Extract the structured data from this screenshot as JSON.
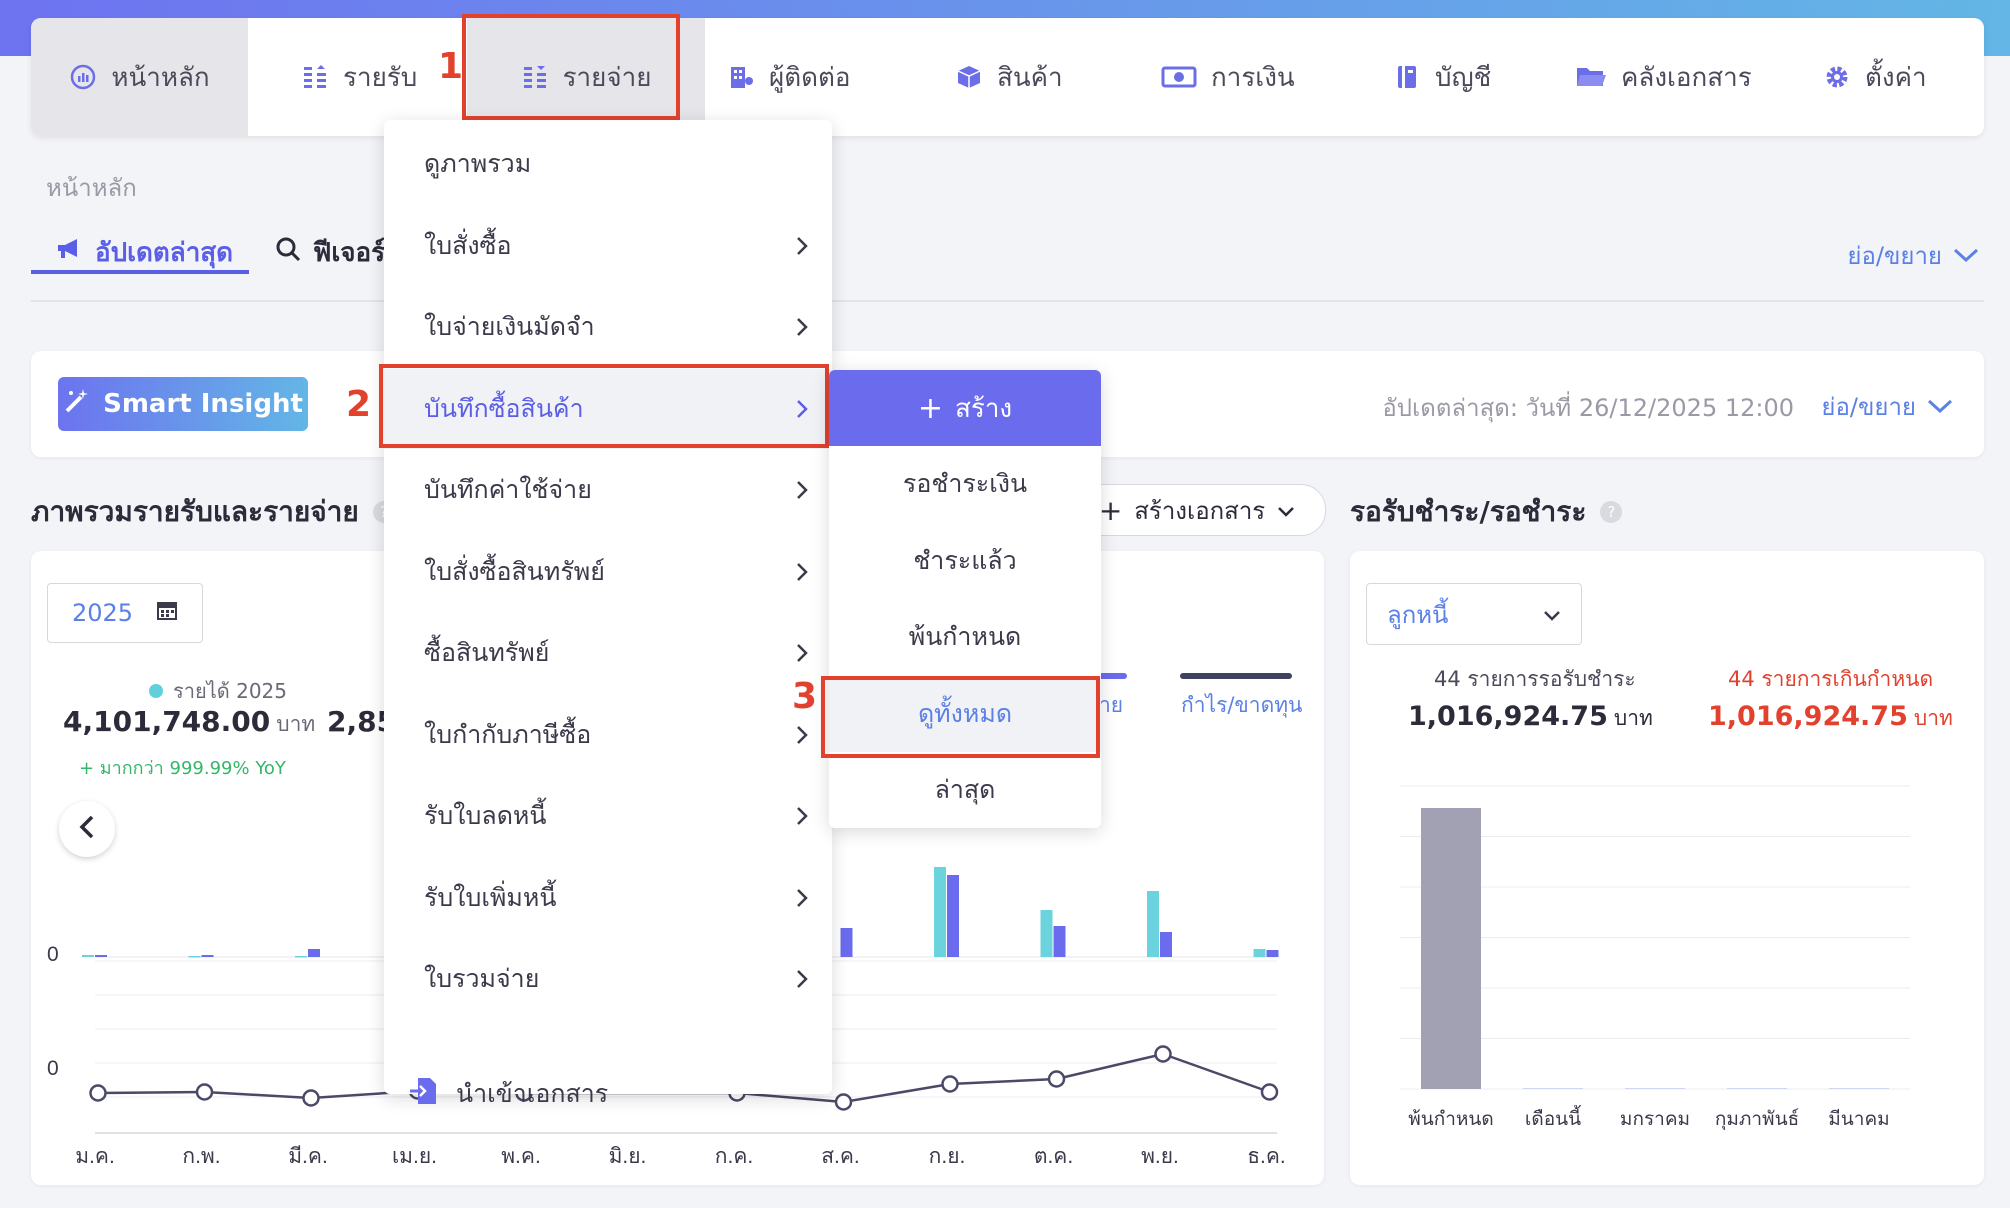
{
  "nav": {
    "items": [
      {
        "label": "หน้าหลัก",
        "icon": "dashboard-icon"
      },
      {
        "label": "รายรับ",
        "icon": "coins-icon"
      },
      {
        "label": "รายจ่าย",
        "icon": "coins-icon"
      },
      {
        "label": "ผู้ติดต่อ",
        "icon": "building-icon"
      },
      {
        "label": "สินค้า",
        "icon": "box-icon"
      },
      {
        "label": "การเงิน",
        "icon": "money-icon"
      },
      {
        "label": "บัญชี",
        "icon": "ledger-icon"
      },
      {
        "label": "คลังเอกสาร",
        "icon": "folder-icon"
      },
      {
        "label": "ตั้งค่า",
        "icon": "gear-icon"
      }
    ]
  },
  "steps": [
    "1",
    "2",
    "3"
  ],
  "breadcrumb": "หน้าหลัก",
  "tabs": {
    "latest": "อัปเดตล่าสุด",
    "features": "ฟีเจอร์ใ"
  },
  "collapse_label": "ย่อ/ขยาย",
  "insight": {
    "button": "Smart Insight",
    "updated": "อัปเดตล่าสุด: วันที่ 26/12/2025 12:00",
    "collapse": "ย่อ/ขยาย"
  },
  "overview": {
    "title": "ภาพรวมรายรับและรายจ่าย",
    "create_doc": "สร้างเอกสาร",
    "year": "2025",
    "income_legend": "รายได้ 2025",
    "income_value": "4,101,748.00",
    "currency": "บาท",
    "second_value": "2,85",
    "yoy": "+ มากกว่า 999.99% YoY",
    "legend_expense_partial": "่าย",
    "legend_profit": "กำไร/ขาดทุน",
    "zero1": "0",
    "zero2": "0"
  },
  "chart_data": {
    "type": "bar",
    "categories": [
      "ม.ค.",
      "ก.พ.",
      "มี.ค.",
      "เม.ย.",
      "พ.ค.",
      "มิ.ย.",
      "ก.ค.",
      "ส.ค.",
      "ก.ย.",
      "ต.ค.",
      "พ.ย.",
      "ธ.ค."
    ],
    "series": [
      {
        "name": "รายได้ 2025",
        "values": [
          2,
          1,
          1,
          null,
          null,
          null,
          null,
          null,
          90,
          47,
          66,
          8
        ]
      },
      {
        "name": "",
        "values": [
          2,
          2,
          8,
          null,
          null,
          null,
          null,
          29,
          82,
          31,
          25,
          7
        ]
      }
    ],
    "line": {
      "name": "กำไร/ขาดทุน",
      "values": [
        0,
        1,
        -5,
        2,
        0,
        null,
        0,
        -9,
        9,
        14,
        39,
        1
      ]
    },
    "colors": {
      "income": "#6ad3de",
      "expense": "#6b6ced",
      "profit": "#4a4a68"
    }
  },
  "receivable": {
    "title": "รอรับชำระ/รอชำระ",
    "select": "ลูกหนี้",
    "pending_label": "44 รายการรอรับชำระ",
    "pending_value": "1,016,924.75",
    "overdue_label": "44 รายการเกินกำหนด",
    "overdue_value": "1,016,924.75",
    "currency": "บาท",
    "chart": {
      "type": "bar",
      "categories": [
        "พ้นกำหนด",
        "เดือนนี้",
        "มกราคม",
        "กุมภาพันธ์",
        "มีนาคม"
      ],
      "values": [
        1016924.75,
        0,
        0,
        0,
        0
      ]
    }
  },
  "menu": {
    "items": [
      {
        "label": "ดูภาพรวม",
        "arrow": false
      },
      {
        "label": "ใบสั่งซื้อ",
        "arrow": true
      },
      {
        "label": "ใบจ่ายเงินมัดจำ",
        "arrow": true
      },
      {
        "label": "บันทึกซื้อสินค้า",
        "arrow": true
      },
      {
        "label": "บันทึกค่าใช้จ่าย",
        "arrow": true
      },
      {
        "label": "ใบสั่งซื้อสินทรัพย์",
        "arrow": true
      },
      {
        "label": "ซื้อสินทรัพย์",
        "arrow": true
      },
      {
        "label": "ใบกำกับภาษีซื้อ",
        "arrow": true
      },
      {
        "label": "รับใบลดหนี้",
        "arrow": true
      },
      {
        "label": "รับใบเพิ่มหนี้",
        "arrow": true
      },
      {
        "label": "ใบรวมจ่าย",
        "arrow": true
      }
    ],
    "import": "นำเข้าเอกสาร"
  },
  "submenu": {
    "create": "สร้าง",
    "items": [
      "รอชำระเงิน",
      "ชำระแล้ว",
      "พ้นกำหนด",
      "ดูทั้งหมด",
      "ล่าสุด"
    ]
  }
}
